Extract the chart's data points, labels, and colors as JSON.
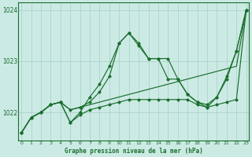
{
  "title": "Graphe pression niveau de la mer (hPa)",
  "background_color": "#cceae4",
  "grid_color": "#aad4cc",
  "line_color": "#1a6e2e",
  "x_ticks": [
    0,
    1,
    2,
    3,
    4,
    5,
    6,
    7,
    8,
    9,
    10,
    11,
    12,
    13,
    14,
    15,
    16,
    17,
    18,
    19,
    20,
    21,
    22,
    23
  ],
  "y_ticks": [
    1022,
    1023,
    1024
  ],
  "ylim": [
    1021.45,
    1024.15
  ],
  "xlim": [
    -0.3,
    23.3
  ],
  "series": [
    [
      1021.6,
      1021.9,
      1022.0,
      1022.15,
      1022.2,
      1022.05,
      1022.1,
      1022.15,
      1022.2,
      1022.25,
      1022.3,
      1022.35,
      1022.4,
      1022.45,
      1022.5,
      1022.55,
      1022.6,
      1022.65,
      1022.7,
      1022.75,
      1022.8,
      1022.85,
      1022.9,
      1024.0
    ],
    [
      1021.6,
      1021.9,
      1022.0,
      1022.15,
      1022.2,
      1022.05,
      1022.1,
      1022.2,
      1022.4,
      1022.7,
      1023.35,
      1023.55,
      1023.35,
      1023.05,
      1023.05,
      1023.05,
      1022.65,
      1022.35,
      1022.2,
      1022.15,
      1022.3,
      1022.7,
      1023.2,
      1024.0
    ],
    [
      1021.6,
      1021.9,
      1022.0,
      1022.15,
      1022.2,
      1021.8,
      1021.95,
      1022.05,
      1022.1,
      1022.15,
      1022.2,
      1022.25,
      1022.25,
      1022.25,
      1022.25,
      1022.25,
      1022.25,
      1022.25,
      1022.15,
      1022.1,
      1022.15,
      1022.2,
      1022.25,
      1024.0
    ],
    [
      1021.6,
      1021.9,
      1022.0,
      1022.15,
      1022.2,
      1021.8,
      1022.0,
      1022.3,
      1022.55,
      1022.9,
      1023.35,
      1023.55,
      1023.3,
      1023.05,
      1023.05,
      1022.65,
      1022.65,
      1022.35,
      1022.2,
      1022.1,
      1022.3,
      1022.65,
      1023.2,
      1024.0
    ]
  ]
}
